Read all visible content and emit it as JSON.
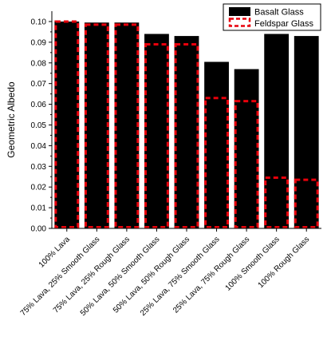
{
  "chart_data": {
    "type": "bar",
    "title": "",
    "xlabel": "",
    "ylabel": "Geometric Albedo",
    "ylim": [
      0,
      0.105
    ],
    "yticks": [
      0.0,
      0.01,
      0.02,
      0.03,
      0.04,
      0.05,
      0.06,
      0.07,
      0.08,
      0.09,
      0.1
    ],
    "grid": false,
    "legend_position": "top-right",
    "categories": [
      "100% Lava",
      "75% Lava, 25% Smooth Glass",
      "75% Lava, 25% Rough Glass",
      "50% Lava, 50% Smooth Glass",
      "50% Lava, 50% Rough Glass",
      "25% Lava, 75% Smooth Glass",
      "25% Lava, 75% Rough Glass",
      "100% Smooth Glass",
      "100% Rough Glass"
    ],
    "series": [
      {
        "name": "Basalt Glass",
        "style": "solid-black",
        "color": "#000000",
        "values": [
          0.1,
          0.0995,
          0.0995,
          0.094,
          0.093,
          0.0805,
          0.077,
          0.094,
          0.093
        ]
      },
      {
        "name": "Feldspar Glass",
        "style": "dashed-outline",
        "color": "#e8000b",
        "values": [
          0.1,
          0.0985,
          0.0985,
          0.089,
          0.089,
          0.063,
          0.0615,
          0.0245,
          0.0235
        ]
      }
    ]
  }
}
